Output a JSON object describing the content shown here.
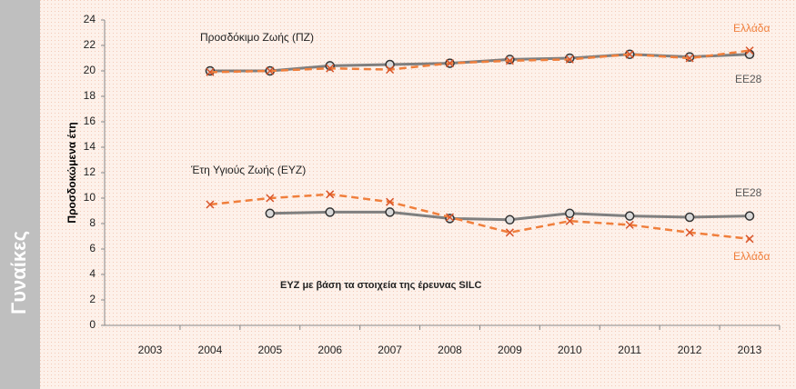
{
  "chart_data": {
    "type": "line",
    "side_label": "Γυναίκες",
    "y_label": "Προσδοκώμενα έτη",
    "annotations": [
      "Προσδόκιμο Ζωής (ΠΖ)",
      "Έτη Υγιούς Ζωής (ΕΥΖ)",
      "ΕΥΖ με βάση τα στοιχεία της έρευνας SILC"
    ],
    "categories": [
      "2003",
      "2004",
      "2005",
      "2006",
      "2007",
      "2008",
      "2009",
      "2010",
      "2011",
      "2012",
      "2013"
    ],
    "ylim": [
      0,
      24
    ],
    "yticks": [
      0,
      2,
      4,
      6,
      8,
      10,
      12,
      14,
      16,
      18,
      20,
      22,
      24
    ],
    "grid": false,
    "series": [
      {
        "name": "ΕΕ28",
        "color": "#7f7f7f",
        "dashed": false,
        "marker": "circle",
        "values": [
          null,
          20.0,
          20.0,
          20.4,
          20.5,
          20.6,
          20.9,
          21.0,
          21.3,
          21.1,
          21.3
        ]
      },
      {
        "name": "Ελλάδα",
        "color": "#f07f3c",
        "dashed": true,
        "marker": "x",
        "values": [
          null,
          19.9,
          20.0,
          20.2,
          20.1,
          20.6,
          20.8,
          20.9,
          21.3,
          21.0,
          21.6
        ]
      },
      {
        "name": "ΕΕ28",
        "color": "#7f7f7f",
        "dashed": false,
        "marker": "circle",
        "values": [
          null,
          null,
          8.8,
          8.9,
          8.9,
          8.4,
          8.3,
          8.8,
          8.6,
          8.5,
          8.6
        ]
      },
      {
        "name": "Ελλάδα",
        "color": "#f07f3c",
        "dashed": true,
        "marker": "x",
        "values": [
          null,
          9.5,
          10.0,
          10.3,
          9.7,
          8.5,
          7.3,
          8.2,
          7.9,
          7.3,
          6.8
        ]
      }
    ]
  }
}
